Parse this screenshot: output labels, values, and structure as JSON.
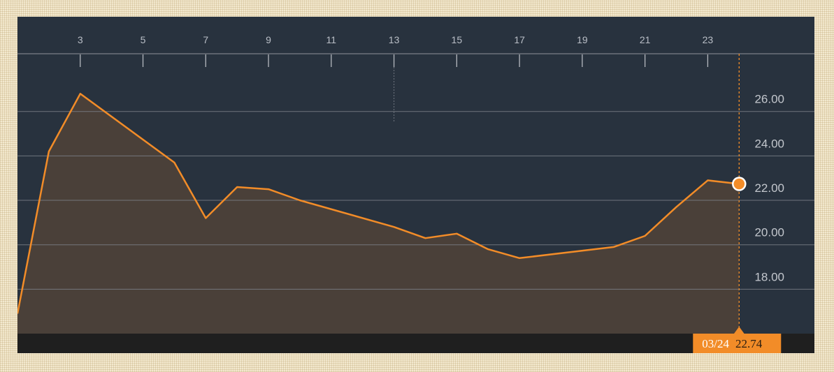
{
  "chart_data": {
    "type": "area",
    "x_ticks": [
      3,
      5,
      7,
      9,
      11,
      13,
      15,
      17,
      19,
      21,
      23
    ],
    "y_ticks": [
      18,
      20,
      22,
      24,
      26
    ],
    "y_tick_labels": [
      "18.00",
      "20.00",
      "22.00",
      "24.00",
      "26.00"
    ],
    "xlim": [
      1,
      26.4
    ],
    "ylim": [
      16,
      28.6
    ],
    "x": [
      1,
      2,
      3,
      6,
      7,
      8,
      9,
      10,
      13,
      14,
      15,
      16,
      17,
      20,
      21,
      22,
      23,
      24
    ],
    "series": [
      {
        "values": [
          16.9,
          24.2,
          26.8,
          23.7,
          21.2,
          22.6,
          22.5,
          22.0,
          20.8,
          20.3,
          20.5,
          19.8,
          19.4,
          19.9,
          20.4,
          21.7,
          22.9,
          22.74
        ]
      }
    ],
    "marker": {
      "x": 24,
      "value": 22.74
    },
    "badge": {
      "date": "03/24",
      "value": "22.74"
    },
    "grid": true,
    "colors": {
      "background": "#28323e",
      "line": "#f28c28",
      "area": "#4a4039",
      "grid": "#7c8088",
      "bottom_band": "#1f1f1f",
      "page": "#f3e9cf"
    }
  }
}
